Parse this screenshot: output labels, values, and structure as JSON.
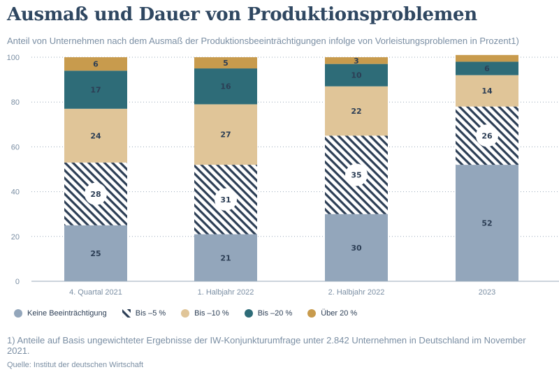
{
  "title": "Ausmaß und Dauer von Produktionsproblemen",
  "subtitle": "Anteil von Unternehmen nach dem Ausmaß der Produktionsbeeinträchtigungen infolge von Vorleistungsproblemen in Prozent1)",
  "footnote": {
    "line1": "1) Anteile auf Basis ungewichteter Ergebnisse der IW-Konjunkturumfrage unter 2.842 Unternehmen in Deutschland im November",
    "line2": "2021."
  },
  "source": "Quelle: Institut der deutschen Wirtschaft",
  "legend": [
    {
      "label": "Keine Beeinträchtigung",
      "swatch": "circle",
      "color": "#93a6bb"
    },
    {
      "label": "Bis –5 %",
      "swatch": "hatch",
      "color": "#2c3e55"
    },
    {
      "label": "Bis –10 %",
      "swatch": "circle",
      "color": "#e0c598"
    },
    {
      "label": "Bis –20 %",
      "swatch": "circle",
      "color": "#2e6c78"
    },
    {
      "label": "Über 20 %",
      "swatch": "circle",
      "color": "#c89b4d"
    }
  ],
  "chart_data": {
    "type": "bar",
    "stacked": true,
    "categories": [
      "4. Quartal 2021",
      "1. Halbjahr 2022",
      "2. Halbjahr 2022",
      "2023"
    ],
    "series": [
      {
        "name": "Keine Beeinträchtigung",
        "values": [
          25,
          21,
          30,
          52
        ],
        "color": "#93a6bb",
        "pattern": "solid"
      },
      {
        "name": "Bis –5 %",
        "values": [
          28,
          31,
          35,
          26
        ],
        "color": "#2c3e55",
        "pattern": "hatch"
      },
      {
        "name": "Bis –10 %",
        "values": [
          24,
          27,
          22,
          14
        ],
        "color": "#e0c598",
        "pattern": "solid"
      },
      {
        "name": "Bis –20 %",
        "values": [
          17,
          16,
          10,
          6
        ],
        "color": "#2e6c78",
        "pattern": "solid"
      },
      {
        "name": "Über 20 %",
        "values": [
          6,
          5,
          3,
          3
        ],
        "color": "#c89b4d",
        "pattern": "solid"
      }
    ],
    "hidden_labels": [
      [
        3,
        4
      ]
    ],
    "yticks": [
      0,
      20,
      40,
      60,
      80,
      100
    ],
    "ylim": [
      0,
      100
    ],
    "grid": "horizontal-dotted"
  }
}
